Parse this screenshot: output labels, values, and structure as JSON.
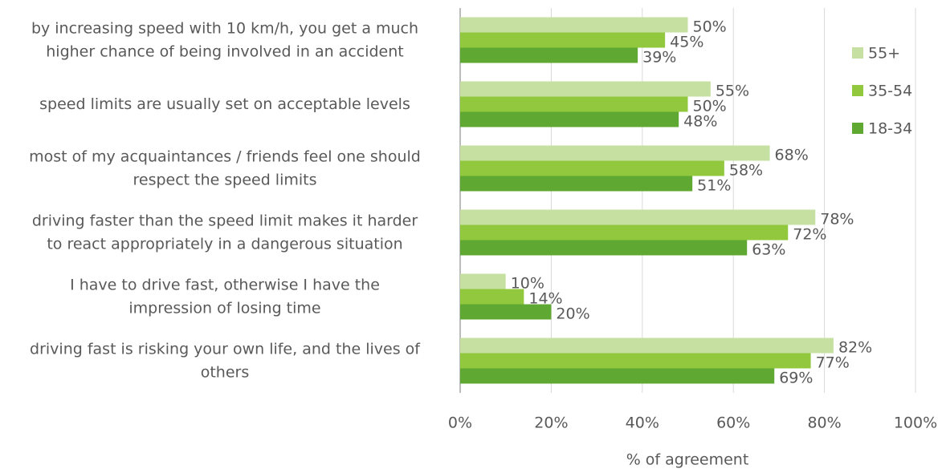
{
  "chart_data": {
    "type": "hbar",
    "categories": [
      "by increasing speed with 10 km/h, you get a much\nhigher chance of being involved in an accident",
      "speed limits are usually set on acceptable levels",
      "most of my acquaintances / friends feel one should\nrespect the speed limits",
      "driving faster than the speed limit makes it harder\nto react appropriately  in a dangerous situation",
      "I have to drive fast, otherwise I have the\nimpression of losing time",
      "driving fast is risking your own life, and the lives of\nothers"
    ],
    "series": [
      {
        "name": "55+",
        "color": "#c6e0a2",
        "values": [
          50,
          55,
          68,
          78,
          10,
          82
        ],
        "value_labels": [
          "50%",
          "55%",
          "68%",
          "78%",
          "10%",
          "82%"
        ]
      },
      {
        "name": "35-54",
        "color": "#92c83e",
        "values": [
          45,
          50,
          58,
          72,
          14,
          77
        ],
        "value_labels": [
          "45%",
          "50%",
          "58%",
          "72%",
          "14%",
          "77%"
        ]
      },
      {
        "name": "18-34",
        "color": "#5fa831",
        "values": [
          39,
          48,
          51,
          63,
          20,
          69
        ],
        "value_labels": [
          "39%",
          "48%",
          "51%",
          "63%",
          "20%",
          "69%"
        ]
      }
    ],
    "xlabel": "% of agreement",
    "xlim": [
      0,
      100
    ],
    "xticks": [
      {
        "value": 0,
        "label": "0%"
      },
      {
        "value": 20,
        "label": "20%"
      },
      {
        "value": 40,
        "label": "40%"
      },
      {
        "value": 60,
        "label": "60%"
      },
      {
        "value": 80,
        "label": "80%"
      },
      {
        "value": 100,
        "label": "100%"
      }
    ],
    "grid": true,
    "legend": "right"
  }
}
